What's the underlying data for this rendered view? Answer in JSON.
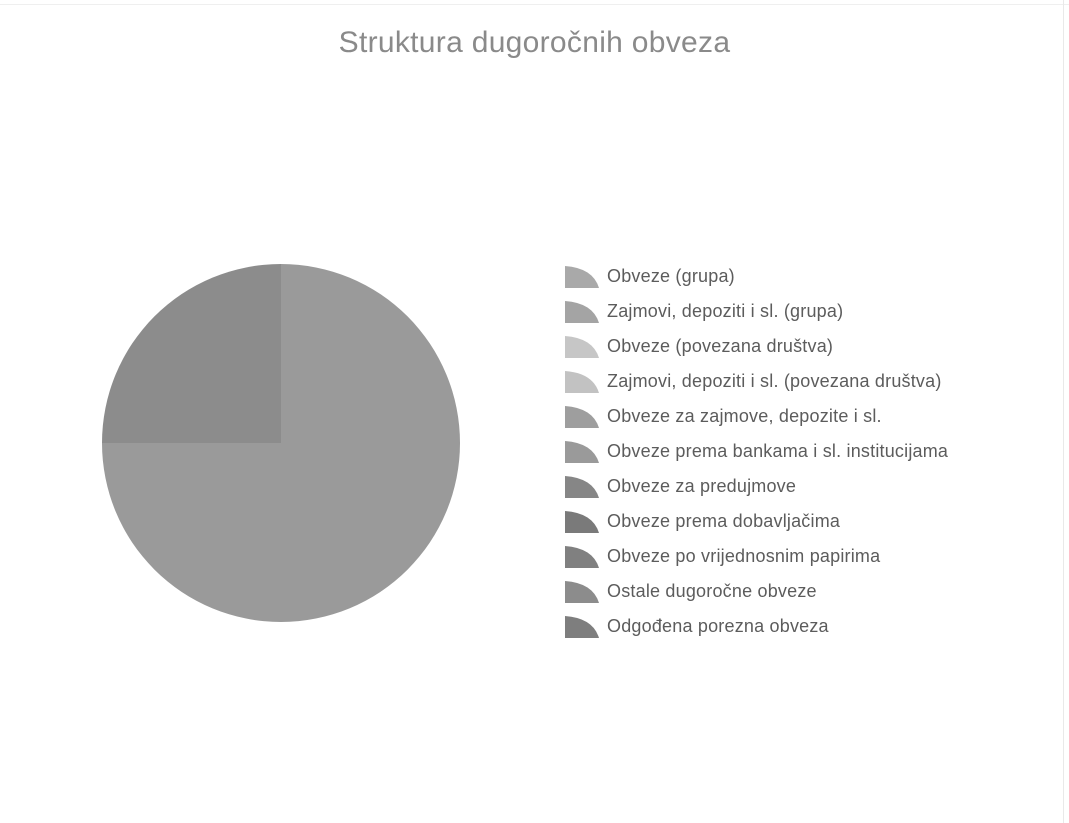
{
  "chart_data": {
    "type": "pie",
    "title": "Struktura dugoročnih obveza",
    "legend_position": "right",
    "slices": [
      {
        "label": "Obveze (grupa)",
        "value": 0,
        "color": "#a9a9a9"
      },
      {
        "label": "Zajmovi, depoziti i sl. (grupa)",
        "value": 0,
        "color": "#a4a4a4"
      },
      {
        "label": "Obveze (povezana društva)",
        "value": 0,
        "color": "#c6c6c6"
      },
      {
        "label": "Zajmovi, depoziti i sl. (povezana društva)",
        "value": 0,
        "color": "#c2c2c2"
      },
      {
        "label": "Obveze za zajmove, depozite i sl.",
        "value": 0,
        "color": "#9e9e9e"
      },
      {
        "label": "Obveze prema bankama i sl. institucijama",
        "value": 75,
        "color": "#9a9a9a"
      },
      {
        "label": "Obveze za predujmove",
        "value": 0,
        "color": "#868686"
      },
      {
        "label": "Obveze prema dobavljačima",
        "value": 0,
        "color": "#7a7a7a"
      },
      {
        "label": "Obveze po vrijednosnim papirima",
        "value": 0,
        "color": "#808080"
      },
      {
        "label": "Ostale dugoročne obveze",
        "value": 25,
        "color": "#8c8c8c"
      },
      {
        "label": "Odgođena porezna obveza",
        "value": 0,
        "color": "#7e7e7e"
      }
    ]
  }
}
